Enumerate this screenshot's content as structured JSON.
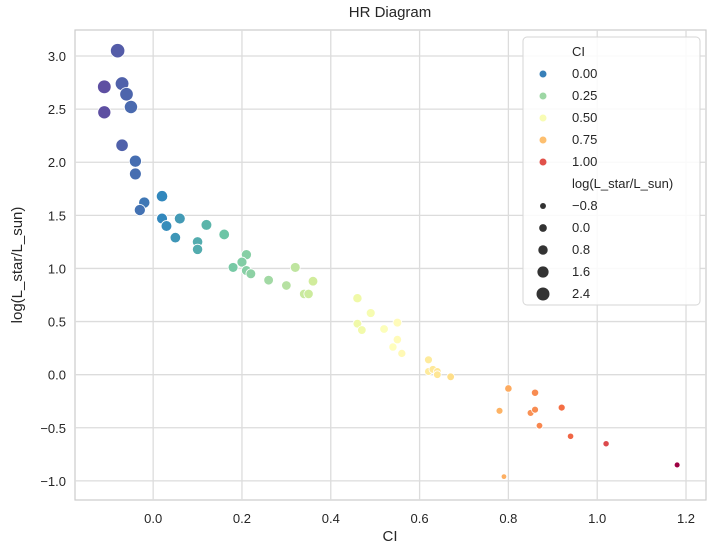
{
  "chart_data": {
    "type": "scatter",
    "title": "HR Diagram",
    "xlabel": "CI",
    "ylabel": "log(L_star/L_sun)",
    "xlim": [
      -0.176,
      1.245
    ],
    "ylim": [
      -1.18,
      3.245
    ],
    "xticks": [
      0.0,
      0.2,
      0.4,
      0.6,
      0.8,
      1.0,
      1.2
    ],
    "xtick_labels": [
      "0.0",
      "0.2",
      "0.4",
      "0.6",
      "0.8",
      "1.0",
      "1.2"
    ],
    "yticks": [
      3.0,
      2.5,
      2.0,
      1.5,
      1.0,
      0.5,
      0.0,
      -0.5,
      -1.0
    ],
    "ytick_labels": [
      "3.0",
      "2.5",
      "2.0",
      "1.5",
      "1.0",
      "0.5",
      "0.0",
      "−0.5",
      "−1.0"
    ],
    "grid": true,
    "hue": "CI",
    "size": "log(L_star/L_sun)",
    "palette": "Spectral_r",
    "points": [
      [
        -0.08,
        3.05
      ],
      [
        -0.11,
        2.71
      ],
      [
        -0.07,
        2.74
      ],
      [
        -0.06,
        2.64
      ],
      [
        -0.05,
        2.52
      ],
      [
        -0.11,
        2.47
      ],
      [
        -0.07,
        2.16
      ],
      [
        -0.04,
        2.01
      ],
      [
        -0.04,
        1.89
      ],
      [
        -0.02,
        1.62
      ],
      [
        -0.03,
        1.55
      ],
      [
        0.02,
        1.68
      ],
      [
        0.02,
        1.47
      ],
      [
        0.06,
        1.47
      ],
      [
        0.03,
        1.4
      ],
      [
        0.05,
        1.29
      ],
      [
        0.12,
        1.41
      ],
      [
        0.1,
        1.25
      ],
      [
        0.1,
        1.18
      ],
      [
        0.16,
        1.32
      ],
      [
        0.21,
        1.13
      ],
      [
        0.2,
        1.06
      ],
      [
        0.21,
        0.98
      ],
      [
        0.18,
        1.01
      ],
      [
        0.22,
        0.95
      ],
      [
        0.26,
        0.89
      ],
      [
        0.32,
        1.01
      ],
      [
        0.36,
        0.88
      ],
      [
        0.3,
        0.84
      ],
      [
        0.34,
        0.76
      ],
      [
        0.35,
        0.76
      ],
      [
        0.46,
        0.72
      ],
      [
        0.49,
        0.58
      ],
      [
        0.46,
        0.48
      ],
      [
        0.47,
        0.42
      ],
      [
        0.52,
        0.43
      ],
      [
        0.55,
        0.49
      ],
      [
        0.55,
        0.33
      ],
      [
        0.54,
        0.26
      ],
      [
        0.56,
        0.2
      ],
      [
        0.62,
        0.14
      ],
      [
        0.62,
        0.03
      ],
      [
        0.63,
        0.05
      ],
      [
        0.64,
        0.03
      ],
      [
        0.64,
        0.0
      ],
      [
        0.67,
        -0.02
      ],
      [
        0.8,
        -0.13
      ],
      [
        0.86,
        -0.17
      ],
      [
        0.78,
        -0.34
      ],
      [
        0.85,
        -0.36
      ],
      [
        0.86,
        -0.33
      ],
      [
        0.92,
        -0.31
      ],
      [
        0.87,
        -0.48
      ],
      [
        0.94,
        -0.58
      ],
      [
        1.02,
        -0.65
      ],
      [
        1.18,
        -0.85
      ],
      [
        0.79,
        -0.96
      ]
    ],
    "legend": {
      "placement": "top-right",
      "hue_title": "CI",
      "hue_entries": [
        {
          "label": "0.00",
          "value": 0.0
        },
        {
          "label": "0.25",
          "value": 0.25
        },
        {
          "label": "0.50",
          "value": 0.5
        },
        {
          "label": "0.75",
          "value": 0.75
        },
        {
          "label": "1.00",
          "value": 1.0
        }
      ],
      "size_title": "log(L_star/L_sun)",
      "size_entries": [
        {
          "label": "−0.8",
          "value": -0.8
        },
        {
          "label": "0.0",
          "value": 0.0
        },
        {
          "label": "0.8",
          "value": 0.8
        },
        {
          "label": "1.6",
          "value": 1.6
        },
        {
          "label": "2.4",
          "value": 2.4
        }
      ]
    }
  }
}
